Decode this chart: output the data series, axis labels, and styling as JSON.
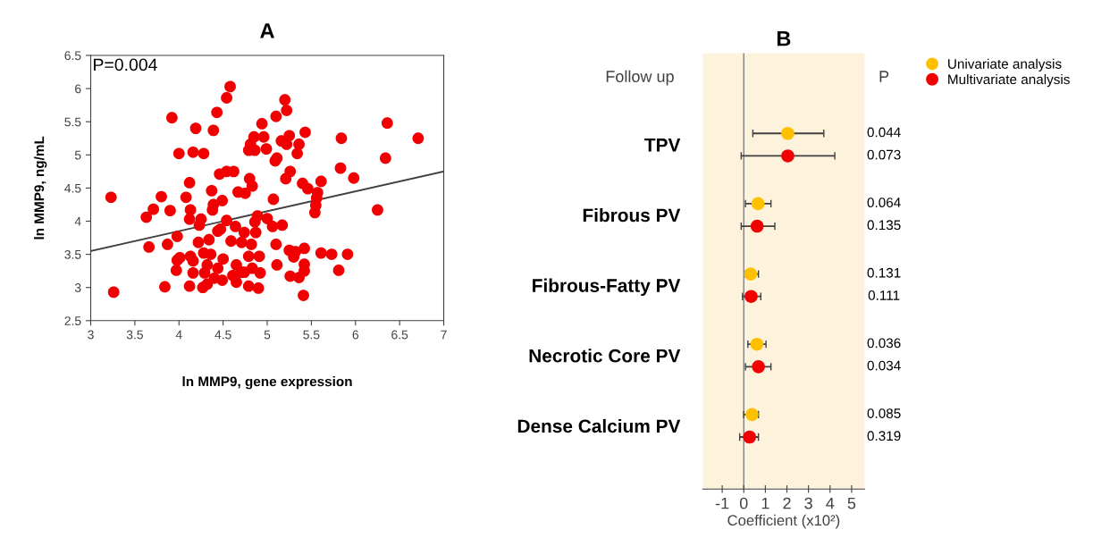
{
  "chart_data": [
    {
      "type": "scatter",
      "title": "A",
      "xlabel": "ln MMP9, gene expression",
      "ylabel": "ln MMP9, ng/mL",
      "xlim": [
        3,
        7
      ],
      "xticks": [
        3,
        3.5,
        4,
        4.5,
        5,
        5.5,
        6,
        6.5,
        7
      ],
      "ylim": [
        2.5,
        6.5
      ],
      "yticks": [
        2.5,
        3,
        3.5,
        4,
        4.5,
        5,
        5.5,
        6,
        6.5
      ],
      "grid": false,
      "marker": "circle",
      "annotations": [
        "P=0.004"
      ],
      "series": [
        {
          "color": "#f00000",
          "x": [
            3.23,
            3.26,
            3.63,
            3.66,
            3.71,
            3.8,
            3.84,
            3.87,
            3.9,
            3.92,
            3.97,
            3.98,
            3.98,
            4.01,
            4.0,
            4.08,
            4.12,
            4.13,
            4.12,
            4.12,
            4.13,
            4.16,
            4.16,
            4.16,
            4.19,
            4.22,
            4.23,
            4.25,
            4.27,
            4.28,
            4.28,
            4.29,
            4.32,
            4.32,
            4.34,
            4.36,
            4.37,
            4.38,
            4.39,
            4.39,
            4.4,
            4.43,
            4.44,
            4.44,
            4.46,
            4.47,
            4.49,
            4.49,
            4.5,
            4.54,
            4.54,
            4.54,
            4.58,
            4.59,
            4.61,
            4.62,
            4.64,
            4.65,
            4.65,
            4.67,
            4.71,
            4.71,
            4.74,
            4.74,
            4.75,
            4.79,
            4.79,
            4.79,
            4.8,
            4.81,
            4.82,
            4.83,
            4.83,
            4.85,
            4.86,
            4.86,
            4.87,
            4.89,
            4.9,
            4.91,
            4.92,
            4.94,
            4.96,
            4.99,
            5.0,
            5.06,
            5.07,
            5.09,
            5.1,
            5.1,
            5.11,
            5.11,
            5.16,
            5.17,
            5.2,
            5.21,
            5.22,
            5.22,
            5.25,
            5.26,
            5.25,
            5.26,
            5.3,
            5.32,
            5.34,
            5.36,
            5.36,
            5.4,
            5.41,
            5.42,
            5.42,
            5.42,
            5.43,
            5.46,
            5.54,
            5.55,
            5.56,
            5.57,
            5.61,
            5.61,
            5.73,
            5.81,
            5.83,
            5.84,
            5.91,
            5.98,
            6.25,
            6.34,
            6.36,
            6.71
          ],
          "values": [
            4.36,
            2.93,
            4.06,
            3.61,
            4.18,
            4.37,
            3.01,
            3.65,
            4.16,
            5.56,
            3.26,
            3.77,
            3.41,
            3.45,
            5.02,
            4.36,
            4.58,
            4.17,
            4.03,
            3.02,
            3.47,
            3.4,
            3.22,
            5.04,
            5.4,
            3.68,
            3.94,
            4.03,
            3.0,
            5.02,
            3.52,
            3.22,
            3.05,
            3.34,
            3.72,
            3.5,
            4.46,
            4.17,
            4.25,
            5.37,
            3.14,
            5.64,
            3.85,
            3.29,
            4.71,
            3.88,
            4.31,
            3.11,
            3.43,
            4.75,
            4.01,
            5.86,
            6.03,
            3.7,
            3.18,
            4.75,
            3.92,
            3.34,
            3.08,
            4.44,
            3.23,
            3.68,
            3.83,
            3.23,
            4.42,
            5.07,
            3.02,
            3.47,
            4.64,
            5.16,
            3.65,
            4.53,
            3.29,
            5.27,
            5.07,
            3.99,
            3.83,
            4.08,
            2.99,
            3.47,
            3.22,
            5.47,
            5.27,
            5.09,
            4.04,
            3.92,
            4.33,
            4.91,
            5.58,
            3.65,
            3.34,
            4.95,
            5.21,
            3.94,
            5.83,
            4.64,
            5.67,
            5.16,
            5.29,
            4.75,
            3.56,
            3.17,
            3.46,
            3.54,
            5.02,
            5.16,
            3.15,
            4.57,
            2.88,
            3.59,
            3.35,
            3.25,
            5.34,
            4.49,
            4.13,
            4.24,
            4.35,
            4.43,
            4.6,
            3.52,
            3.5,
            3.26,
            4.8,
            5.25,
            3.5,
            4.65,
            4.17,
            4.95,
            5.48,
            5.25
          ]
        },
        {
          "type": "line",
          "marker": "none",
          "color": "#404040",
          "x": [
            3,
            7
          ],
          "values": [
            3.55,
            4.75
          ]
        }
      ]
    },
    {
      "type": "scatter",
      "title": "B",
      "orientation": "horizontal",
      "xlabel": "Coefficient (x10²)",
      "xlim": [
        -1.9,
        5.6
      ],
      "xticks": [
        -1,
        0,
        1,
        2,
        3,
        4,
        5
      ],
      "grid": false,
      "marker": "circle",
      "legend": "top right",
      "categories": [
        "TPV",
        "Fibrous PV",
        "Fibrous-Fatty PV",
        "Necrotic Core PV",
        "Dense Calcium PV"
      ],
      "ref_lines": [
        {
          "axis": "x",
          "value": 0,
          "color": "#808080"
        }
      ],
      "series": [
        {
          "name": "Univariate analysis",
          "color": "#ffc000",
          "values": [
            2.04,
            0.66,
            0.32,
            0.61,
            0.38
          ],
          "errors": [
            [
              0.42,
              3.71
            ],
            [
              0.08,
              1.26
            ],
            [
              0.08,
              0.68
            ],
            [
              0.19,
              1.03
            ],
            [
              0.0,
              0.68
            ]
          ]
        },
        {
          "name": "Multivariate analysis",
          "color": "#f00000",
          "values": [
            2.04,
            0.62,
            0.34,
            0.68,
            0.27
          ],
          "errors": [
            [
              -0.12,
              4.22
            ],
            [
              -0.12,
              1.44
            ],
            [
              -0.06,
              0.79
            ],
            [
              0.08,
              1.26
            ],
            [
              -0.19,
              0.68
            ]
          ]
        }
      ],
      "annotations": [
        "Follow up",
        "P",
        "0.044",
        "0.073",
        "0.064",
        "0.135",
        "0.131",
        "0.111",
        "0.036",
        "0.034",
        "0.085",
        "0.319"
      ]
    }
  ]
}
